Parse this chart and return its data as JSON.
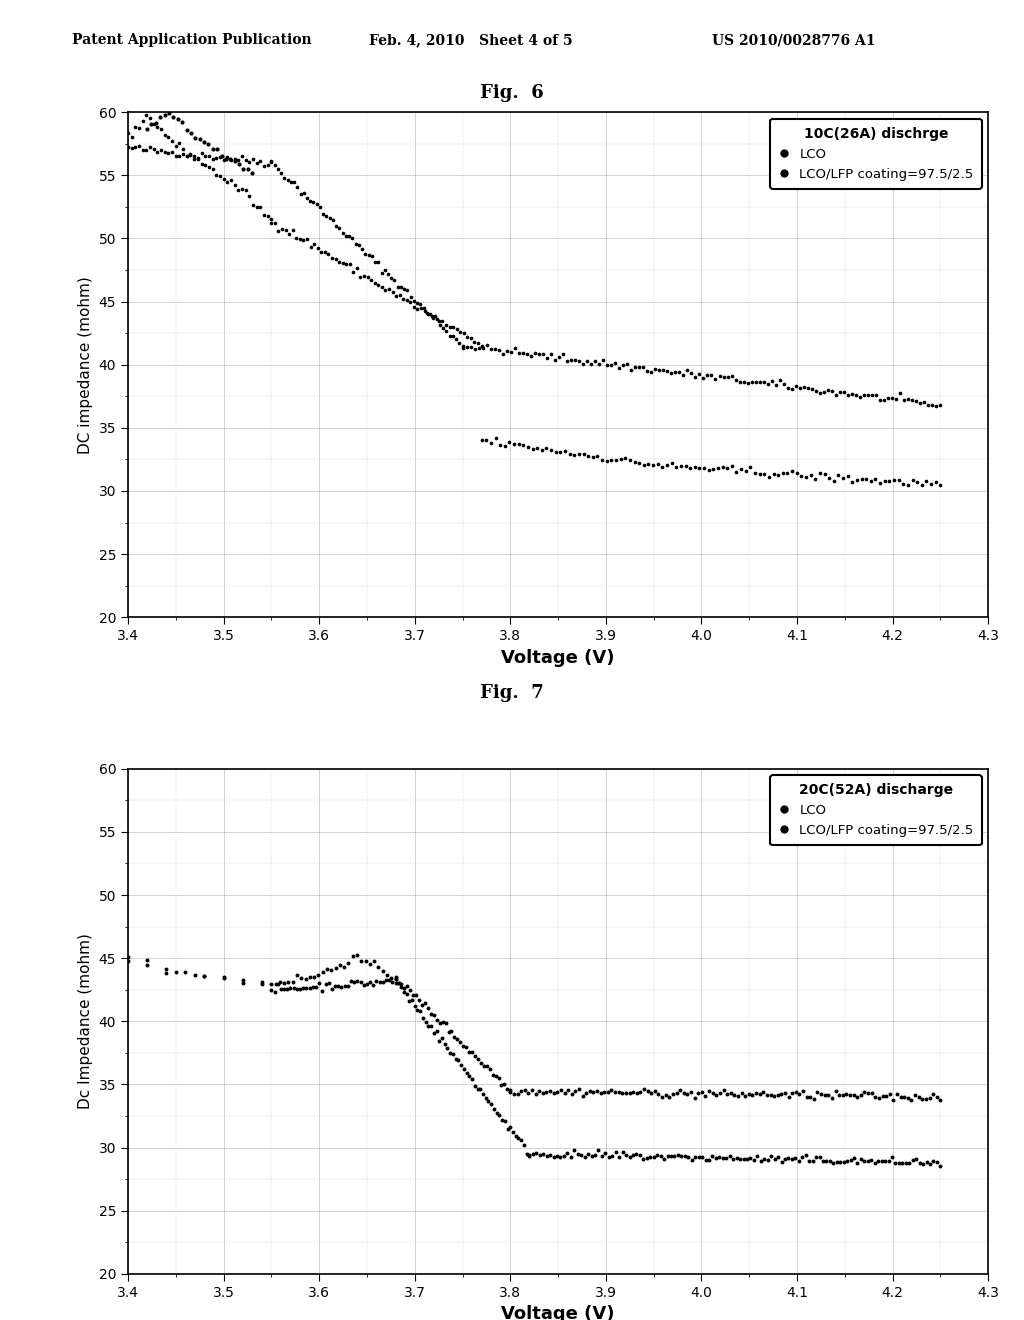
{
  "header_left": "Patent Application Publication",
  "header_mid": "Feb. 4, 2010   Sheet 4 of 5",
  "header_right": "US 2010/0028776 A1",
  "fig6_title": "Fig.  6",
  "fig7_title": "Fig.  7",
  "fig6_legend_title": "10C(26A) dischrge",
  "fig7_legend_title": "20C(52A) discharge",
  "legend_lco": "LCO",
  "legend_lfp": "LCO/LFP coating=97.5/2.5",
  "fig6_ylabel": "DC impedance (mohm)",
  "fig7_ylabel": "Dc Impedance (mohm)",
  "xlabel": "Voltage (V)",
  "xlim": [
    3.4,
    4.3
  ],
  "ylim": [
    20,
    60
  ],
  "xticks": [
    3.4,
    3.5,
    3.6,
    3.7,
    3.8,
    3.9,
    4.0,
    4.1,
    4.2,
    4.3
  ],
  "yticks": [
    20,
    25,
    30,
    35,
    40,
    45,
    50,
    55,
    60
  ],
  "dot_color": "#000000",
  "background_color": "#ffffff"
}
